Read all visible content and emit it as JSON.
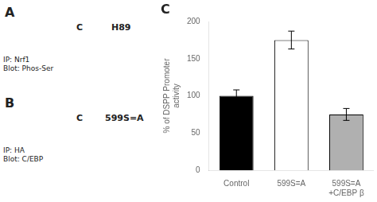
{
  "chart_data": {
    "type": "bar",
    "categories": [
      "Control",
      "599S=A",
      "599S=A\n+C/EBP β"
    ],
    "values": [
      100,
      175,
      75
    ],
    "errors": [
      8,
      12,
      8
    ],
    "colors": [
      "black",
      "white",
      "#b0b0b0"
    ],
    "ylabel": "% of DSPP Promoter\nactivity",
    "ylim": [
      0,
      200
    ],
    "yticks": [
      0,
      50,
      100,
      150,
      200
    ],
    "grid": false,
    "annotations": [
      "A",
      "C",
      "H89",
      "IP: Nrf1\nBlot: Phos-Ser",
      "B",
      "C",
      "599S=A",
      "IP: HA\nBlot: C/EBP",
      "C"
    ]
  }
}
